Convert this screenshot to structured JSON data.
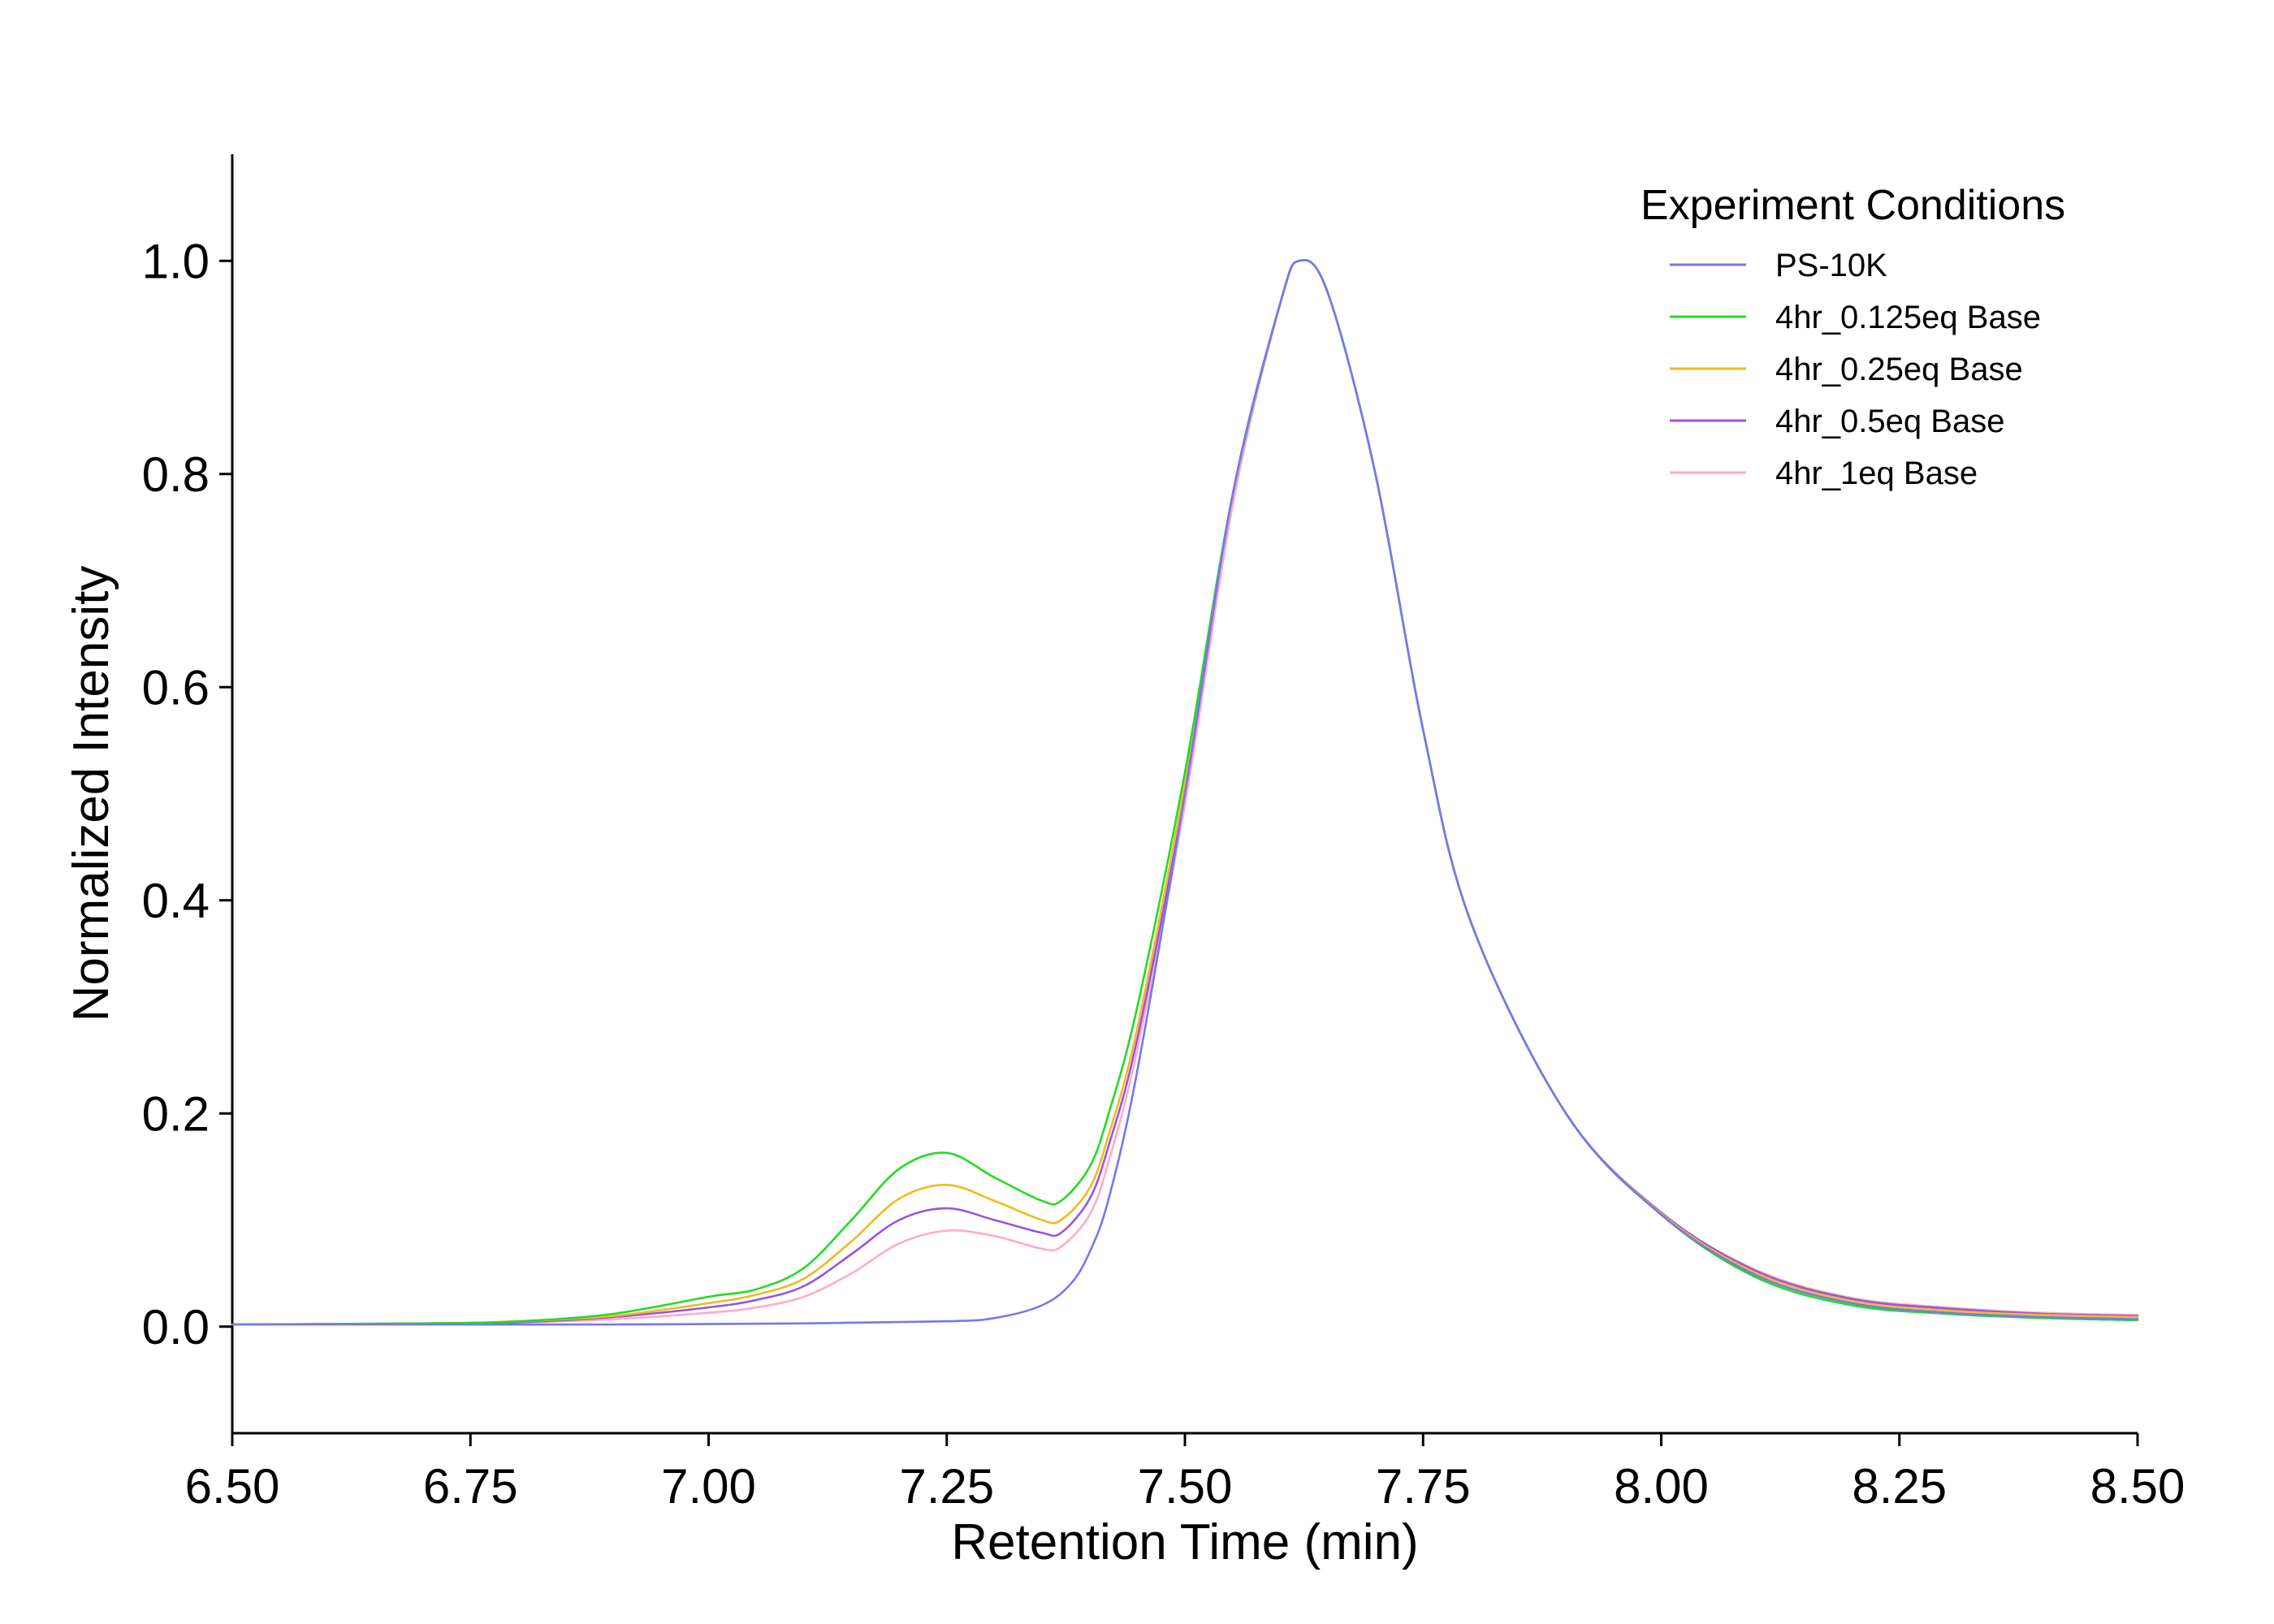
{
  "chart_data": {
    "type": "line",
    "xlabel": "Retention Time (min)",
    "ylabel": "Normalized Intensity",
    "xlim": [
      6.5,
      8.5
    ],
    "ylim": [
      -0.1,
      1.1
    ],
    "x_ticks": [
      "6.50",
      "6.75",
      "7.00",
      "7.25",
      "7.50",
      "7.75",
      "8.00",
      "8.25",
      "8.50"
    ],
    "y_ticks": [
      "0.0",
      "0.2",
      "0.4",
      "0.6",
      "0.8",
      "1.0"
    ],
    "grid": false,
    "legend": {
      "title": "Experiment Conditions",
      "position": "top-right"
    },
    "series": [
      {
        "name": "PS-10K",
        "color": "#7777ee",
        "x": [
          6.5,
          6.7,
          6.9,
          7.1,
          7.25,
          7.3,
          7.35,
          7.38,
          7.4,
          7.42,
          7.45,
          7.5,
          7.55,
          7.6,
          7.62,
          7.65,
          7.7,
          7.75,
          7.8,
          7.9,
          8.0,
          8.1,
          8.2,
          8.3,
          8.4,
          8.5
        ],
        "y": [
          0.002,
          0.002,
          0.002,
          0.003,
          0.005,
          0.008,
          0.02,
          0.04,
          0.07,
          0.12,
          0.24,
          0.5,
          0.78,
          0.96,
          1.0,
          0.97,
          0.8,
          0.56,
          0.38,
          0.2,
          0.105,
          0.048,
          0.022,
          0.013,
          0.009,
          0.007
        ]
      },
      {
        "name": "4hr_0.125eq Base",
        "color": "#22dd22",
        "x": [
          6.5,
          6.7,
          6.8,
          6.9,
          7.0,
          7.05,
          7.1,
          7.15,
          7.2,
          7.25,
          7.3,
          7.35,
          7.37,
          7.4,
          7.42,
          7.45,
          7.5,
          7.55,
          7.6,
          7.62,
          7.65,
          7.7,
          7.75,
          7.8,
          7.9,
          8.0,
          8.1,
          8.2,
          8.3,
          8.4,
          8.5
        ],
        "y": [
          0.002,
          0.003,
          0.005,
          0.012,
          0.028,
          0.035,
          0.055,
          0.1,
          0.148,
          0.163,
          0.14,
          0.118,
          0.118,
          0.15,
          0.2,
          0.3,
          0.52,
          0.78,
          0.96,
          1.0,
          0.97,
          0.8,
          0.56,
          0.38,
          0.2,
          0.105,
          0.046,
          0.02,
          0.012,
          0.008,
          0.006
        ]
      },
      {
        "name": "4hr_0.25eq Base",
        "color": "#eebb22",
        "x": [
          6.5,
          6.7,
          6.8,
          6.9,
          7.0,
          7.05,
          7.1,
          7.15,
          7.2,
          7.25,
          7.3,
          7.35,
          7.37,
          7.4,
          7.42,
          7.45,
          7.5,
          7.55,
          7.6,
          7.62,
          7.65,
          7.7,
          7.75,
          7.8,
          7.9,
          8.0,
          8.1,
          8.2,
          8.3,
          8.4,
          8.5
        ],
        "y": [
          0.002,
          0.003,
          0.005,
          0.01,
          0.022,
          0.03,
          0.045,
          0.08,
          0.12,
          0.133,
          0.118,
          0.1,
          0.1,
          0.13,
          0.18,
          0.28,
          0.51,
          0.78,
          0.96,
          1.0,
          0.97,
          0.8,
          0.56,
          0.38,
          0.2,
          0.106,
          0.05,
          0.024,
          0.015,
          0.011,
          0.009
        ]
      },
      {
        "name": "4hr_0.5eq Base",
        "color": "#9955dd",
        "x": [
          6.5,
          6.7,
          6.8,
          6.9,
          7.0,
          7.05,
          7.1,
          7.15,
          7.2,
          7.25,
          7.3,
          7.35,
          7.37,
          7.4,
          7.42,
          7.45,
          7.5,
          7.55,
          7.6,
          7.62,
          7.65,
          7.7,
          7.75,
          7.8,
          7.9,
          8.0,
          8.1,
          8.2,
          8.3,
          8.4,
          8.5
        ],
        "y": [
          0.002,
          0.003,
          0.004,
          0.009,
          0.018,
          0.025,
          0.038,
          0.068,
          0.1,
          0.111,
          0.1,
          0.088,
          0.088,
          0.12,
          0.17,
          0.27,
          0.5,
          0.78,
          0.96,
          1.0,
          0.97,
          0.8,
          0.56,
          0.38,
          0.2,
          0.107,
          0.052,
          0.026,
          0.017,
          0.012,
          0.01
        ]
      },
      {
        "name": "4hr_1eq Base",
        "color": "#ffaacc",
        "x": [
          6.5,
          6.7,
          6.8,
          6.9,
          7.0,
          7.05,
          7.1,
          7.15,
          7.2,
          7.25,
          7.3,
          7.35,
          7.37,
          7.4,
          7.42,
          7.45,
          7.5,
          7.55,
          7.6,
          7.62,
          7.65,
          7.7,
          7.75,
          7.8,
          7.9,
          8.0,
          8.1,
          8.2,
          8.3,
          8.4,
          8.5
        ],
        "y": [
          0.002,
          0.003,
          0.004,
          0.007,
          0.013,
          0.018,
          0.028,
          0.05,
          0.078,
          0.09,
          0.085,
          0.073,
          0.075,
          0.105,
          0.155,
          0.26,
          0.49,
          0.77,
          0.96,
          1.0,
          0.97,
          0.8,
          0.56,
          0.38,
          0.2,
          0.107,
          0.053,
          0.027,
          0.018,
          0.013,
          0.011
        ]
      }
    ]
  }
}
